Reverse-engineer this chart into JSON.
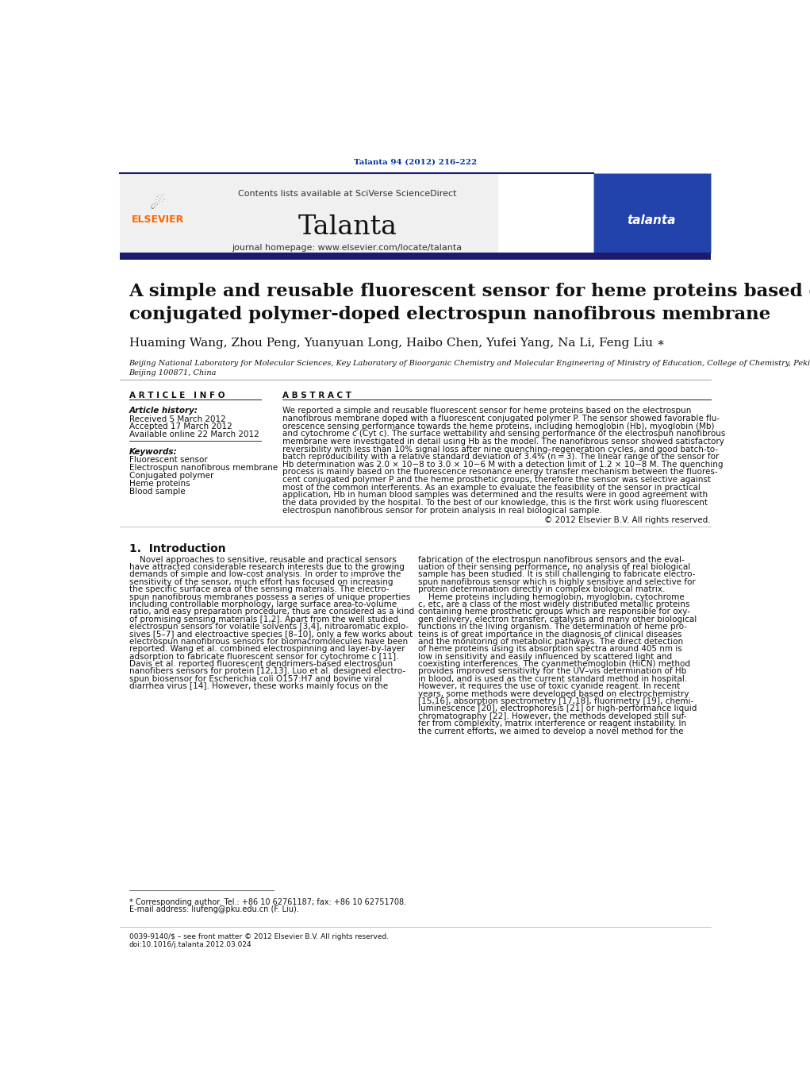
{
  "page_width": 10.21,
  "page_height": 13.51,
  "bg_color": "#ffffff",
  "top_citation": "Talanta 94 (2012) 216–222",
  "top_citation_color": "#003399",
  "journal_name": "Talanta",
  "contents_text": "Contents lists available at SciVerse ScienceDirect",
  "homepage_text": "journal homepage: www.elsevier.com/locate/talanta",
  "paper_title_line1": "A simple and reusable fluorescent sensor for heme proteins based on a",
  "paper_title_line2": "conjugated polymer-doped electrospun nanofibrous membrane",
  "authors": "Huaming Wang, Zhou Peng, Yuanyuan Long, Haibo Chen, Yufei Yang, Na Li, Feng Liu",
  "affiliation_line1": "Beijing National Laboratory for Molecular Sciences, Key Laboratory of Bioorganic Chemistry and Molecular Engineering of Ministry of Education, College of Chemistry, Peking University,",
  "affiliation_line2": "Beijing 100871, China",
  "article_info_header": "A R T I C L E   I N F O",
  "abstract_header": "A B S T R A C T",
  "article_history_label": "Article history:",
  "received": "Received 5 March 2012",
  "accepted": "Accepted 17 March 2012",
  "available": "Available online 22 March 2012",
  "keywords_label": "Keywords:",
  "keywords": [
    "Fluorescent sensor",
    "Electrospun nanofibrous membrane",
    "Conjugated polymer",
    "Heme proteins",
    "Blood sample"
  ],
  "copyright": "© 2012 Elsevier B.V. All rights reserved.",
  "intro_header": "1.  Introduction",
  "footnote_line1": "* Corresponding author. Tel.: +86 10 62761187; fax: +86 10 62751708.",
  "footnote_line2": "E-mail address: liufeng@pku.edu.cn (F. Liu).",
  "footer_left": "0039-9140/$ – see front matter © 2012 Elsevier B.V. All rights reserved.",
  "footer_doi": "doi:10.1016/j.talanta.2012.03.024",
  "header_bar_color": "#1a1a6e",
  "link_color": "#0033cc",
  "elsevier_color": "#FF6600",
  "gray_box_color": "#f0f0f0",
  "cover_box_color": "#2244aa"
}
